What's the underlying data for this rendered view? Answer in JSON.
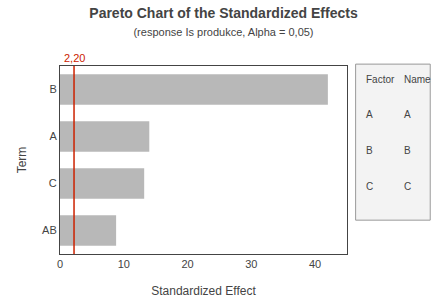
{
  "chart_data": {
    "type": "bar",
    "orientation": "horizontal",
    "title": "Pareto Chart of the Standardized Effects",
    "subtitle": "(response Is produkce, Alpha = 0,05)",
    "categories": [
      "AB",
      "C",
      "A",
      "B"
    ],
    "values": [
      8.8,
      13.2,
      14.0,
      42.0
    ],
    "color": "#b8b8b8",
    "xlabel": "Standardized Effect",
    "ylabel": "Term",
    "xlim": [
      0,
      45
    ],
    "xticks": [
      0,
      10,
      20,
      30,
      40
    ],
    "grid": false,
    "reference_line": {
      "value": 2.2,
      "label": "2,20",
      "color": "#cc2200"
    },
    "annotations": [
      {
        "header": [
          "Factor",
          "Name"
        ],
        "rows": [
          [
            "A",
            "A"
          ],
          [
            "B",
            "B"
          ],
          [
            "C",
            "C"
          ]
        ]
      }
    ]
  }
}
